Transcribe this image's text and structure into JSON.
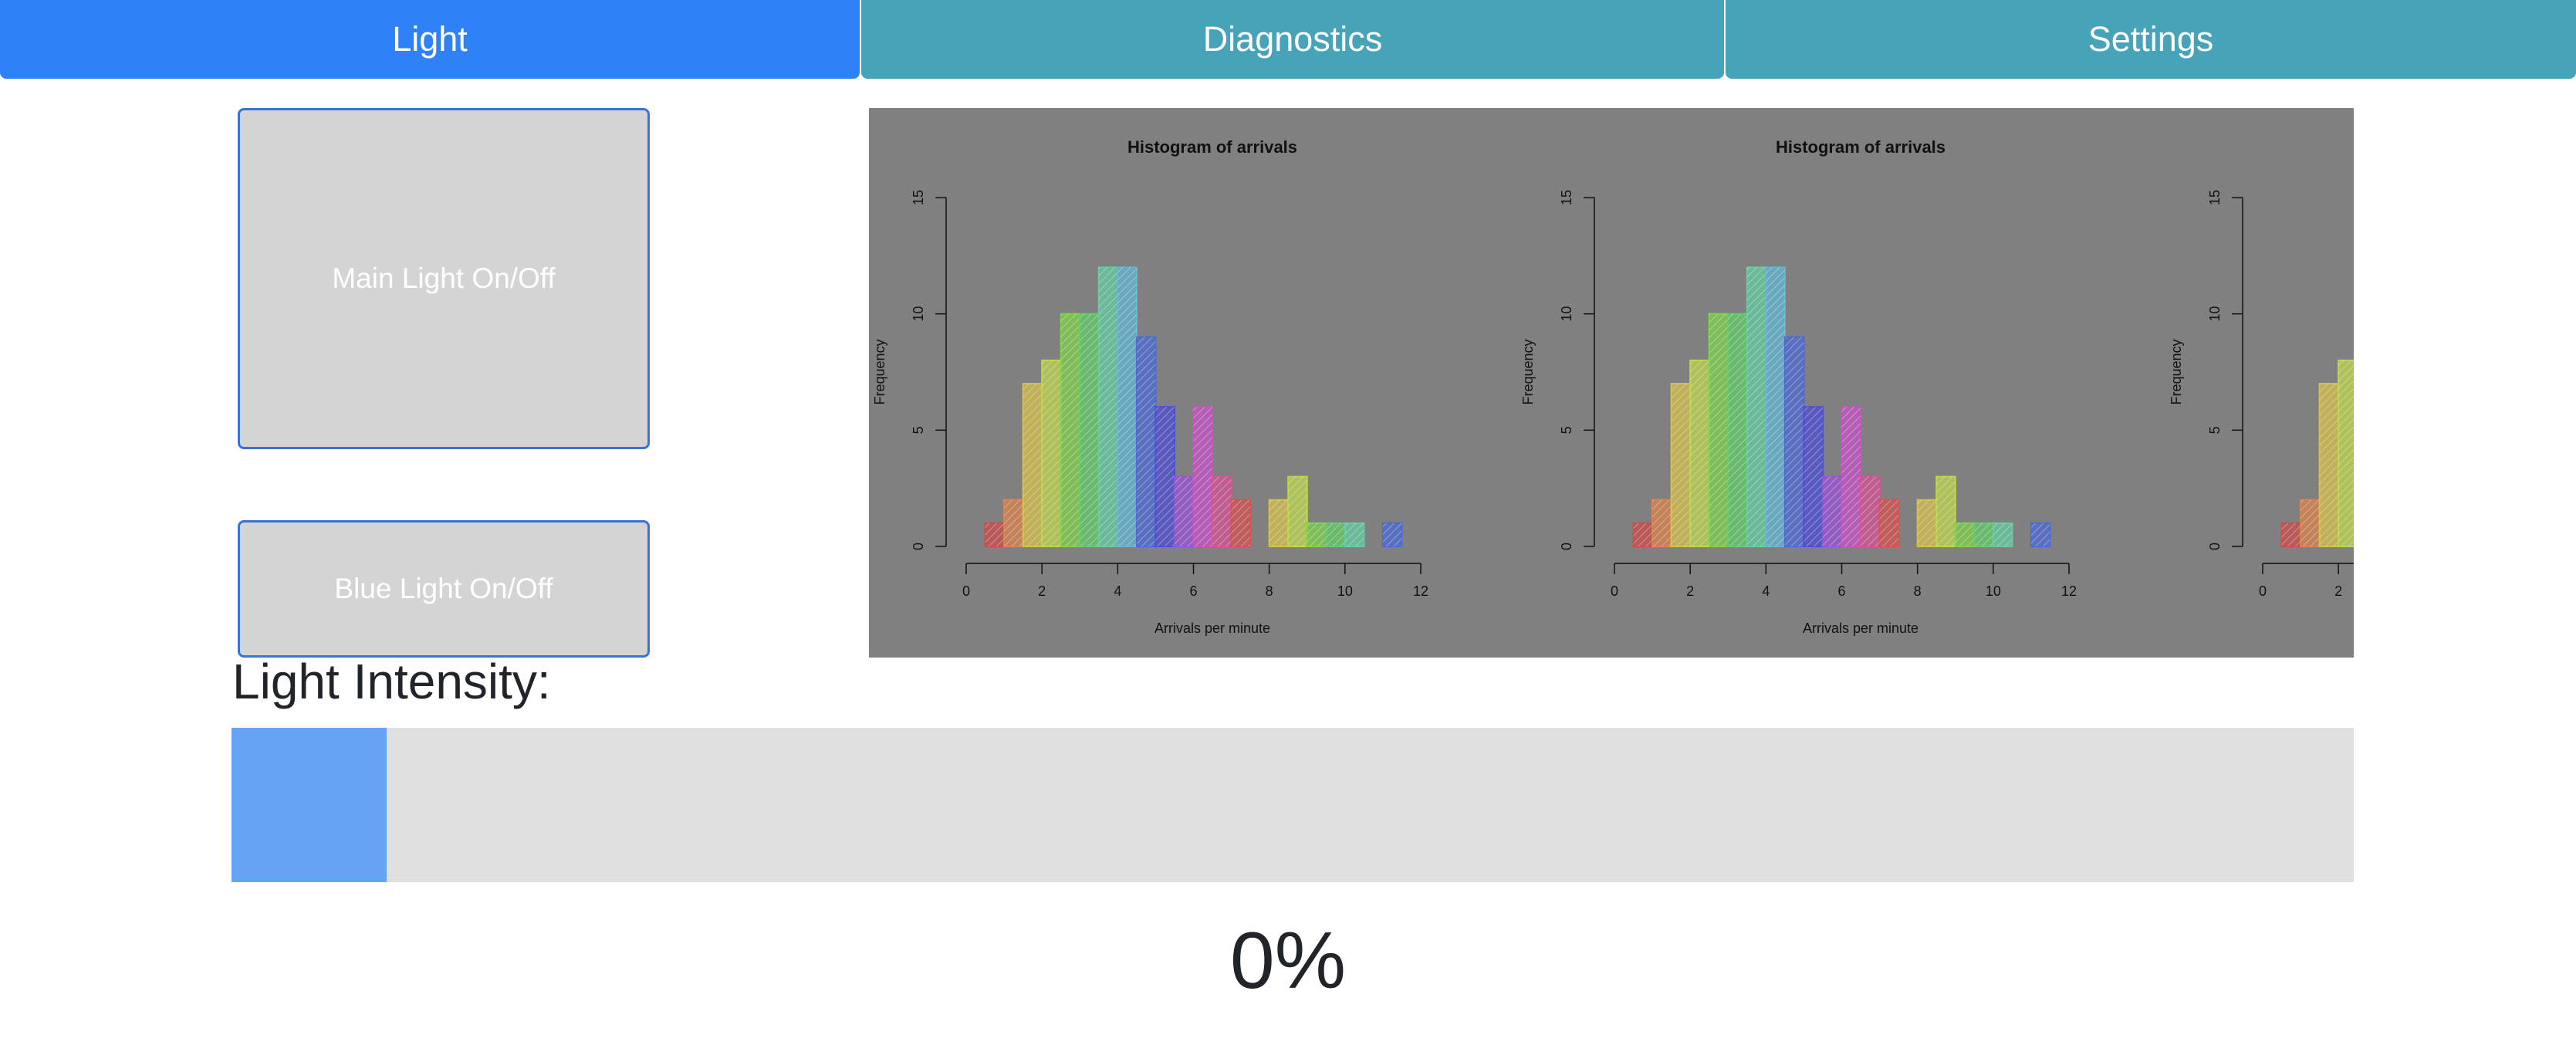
{
  "tabs": [
    {
      "label": "Light",
      "active": true
    },
    {
      "label": "Diagnostics",
      "active": false
    },
    {
      "label": "Settings",
      "active": false
    }
  ],
  "controls": {
    "main_light_label": "Main Light On/Off",
    "blue_light_label": "Blue Light On/Off"
  },
  "intensity": {
    "heading": "Light Intensity:",
    "value_text": "0%",
    "fill_fraction": 0.073
  },
  "colors": {
    "tab_active": "#2f81f7",
    "tab_inactive": "#47a3b8",
    "button_bg": "#d4d4d4",
    "button_border": "#3a72d9",
    "slider_fill": "#66a3f5",
    "slider_track": "#e0e0e0",
    "plot_bg": "#808080"
  },
  "chart_data": [
    {
      "type": "bar",
      "title": "Histogram of arrivals",
      "xlabel": "Arrivals per minute",
      "ylabel": "Frequency",
      "bin_width": 0.5,
      "bin_starts": [
        0.5,
        1.0,
        1.5,
        2.0,
        2.5,
        3.0,
        3.5,
        4.0,
        4.5,
        5.0,
        5.5,
        6.0,
        6.5,
        7.0,
        7.5,
        8.0,
        8.5,
        9.0,
        9.5,
        10.0,
        10.5,
        11.0
      ],
      "values": [
        1,
        2,
        7,
        8,
        10,
        10,
        12,
        12,
        9,
        6,
        3,
        6,
        3,
        2,
        0,
        2,
        3,
        1,
        1,
        1,
        0,
        1
      ],
      "bar_colors": [
        "#cc4c4c",
        "#d9834c",
        "#d6c04c",
        "#bcd64c",
        "#7fd14c",
        "#63cc6a",
        "#63cca0",
        "#63b5d6",
        "#4c6ad6",
        "#4c4cd6",
        "#9a52d6",
        "#c652c6",
        "#d65296",
        "#d65252",
        "#d65252",
        "#d6c04c",
        "#bcd64c",
        "#7fd14c",
        "#63cc6a",
        "#63cca0",
        "#63b5d6",
        "#4c6ad6"
      ],
      "xlim": [
        0,
        12
      ],
      "ylim": [
        0,
        15
      ],
      "xticks": [
        "0",
        "2",
        "4",
        "6",
        "8",
        "10",
        "12"
      ],
      "yticks": [
        "0",
        "5",
        "10",
        "15"
      ]
    },
    {
      "type": "bar",
      "title": "Histogram of arrivals",
      "xlabel": "Arrivals per minute",
      "ylabel": "Frequency",
      "bin_width": 0.5,
      "bin_starts": [
        0.5,
        1.0,
        1.5,
        2.0,
        2.5,
        3.0,
        3.5,
        4.0,
        4.5,
        5.0,
        5.5,
        6.0,
        6.5,
        7.0,
        7.5,
        8.0,
        8.5,
        9.0,
        9.5,
        10.0,
        10.5,
        11.0
      ],
      "values": [
        1,
        2,
        7,
        8,
        10,
        10,
        12,
        12,
        9,
        6,
        3,
        6,
        3,
        2,
        0,
        2,
        3,
        1,
        1,
        1,
        0,
        1
      ],
      "bar_colors": [
        "#cc4c4c",
        "#d9834c",
        "#d6c04c",
        "#bcd64c",
        "#7fd14c",
        "#63cc6a",
        "#63cca0",
        "#63b5d6",
        "#4c6ad6",
        "#4c4cd6",
        "#9a52d6",
        "#c652c6",
        "#d65296",
        "#d65252",
        "#d65252",
        "#d6c04c",
        "#bcd64c",
        "#7fd14c",
        "#63cc6a",
        "#63cca0",
        "#63b5d6",
        "#4c6ad6"
      ],
      "xlim": [
        0,
        12
      ],
      "ylim": [
        0,
        15
      ],
      "xticks": [
        "0",
        "2",
        "4",
        "6",
        "8",
        "10",
        "12"
      ],
      "yticks": [
        "0",
        "5",
        "10",
        "15"
      ]
    },
    {
      "type": "bar",
      "title": "",
      "xlabel": "",
      "ylabel": "Frequency",
      "bin_width": 0.5,
      "bin_starts": [
        0.5,
        1.0,
        1.5,
        2.0
      ],
      "values": [
        1,
        2,
        7,
        8
      ],
      "bar_colors": [
        "#cc4c4c",
        "#d9834c",
        "#d6c04c",
        "#bcd64c"
      ],
      "xlim": [
        0,
        12
      ],
      "ylim": [
        0,
        15
      ],
      "xticks": [
        "0",
        "2"
      ],
      "yticks": [
        "0",
        "5",
        "10",
        "15"
      ]
    }
  ]
}
